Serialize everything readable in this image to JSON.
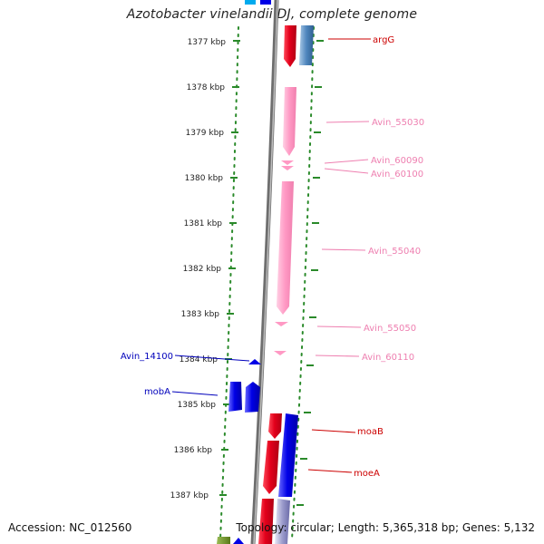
{
  "title": "Azotobacter vinelandii DJ, complete genome",
  "footer": {
    "accession": "Accession: NC_012560",
    "summary": "Topology: circular; Length: 5,365,318 bp; Genes: 5,132"
  },
  "ruler": {
    "unit": "kbp",
    "ticks": [
      1377,
      1378,
      1379,
      1380,
      1381,
      1382,
      1383,
      1384,
      1385,
      1386,
      1387
    ]
  },
  "colors": {
    "backbone": "#8a8a8a",
    "ruler_dots": "#2a8a2a",
    "gene_red": "#e3001b",
    "gene_red_label": "#cc0000",
    "gene_blue": "#0000e6",
    "gene_blue_label": "#0000bb",
    "gene_pink": "#ff99c4",
    "gene_pink_label": "#ee7fb0",
    "gene_steelblue": "#4f86bd",
    "gene_olive": "#6a8e23",
    "gene_lavender": "#9c9ccc"
  },
  "genes": [
    {
      "id": "argG",
      "label": "argG",
      "color": "gene_red",
      "strand": "forward",
      "start_kbp": 1376.7,
      "end_kbp": 1377.55
    },
    {
      "id": "argG-partner",
      "label": "",
      "color": "gene_steelblue",
      "strand": "forward",
      "start_kbp": 1376.7,
      "end_kbp": 1377.55
    },
    {
      "id": "Avin_55030",
      "label": "Avin_55030",
      "color": "gene_pink",
      "strand": "reverse",
      "start_kbp": 1377.95,
      "end_kbp": 1379.5
    },
    {
      "id": "Avin_60090",
      "label": "Avin_60090",
      "color": "gene_pink",
      "strand": "reverse",
      "start_kbp": 1379.6,
      "end_kbp": 1379.7
    },
    {
      "id": "Avin_60100",
      "label": "Avin_60100",
      "color": "gene_pink",
      "strand": "reverse",
      "start_kbp": 1379.75,
      "end_kbp": 1379.85
    },
    {
      "id": "Avin_55040",
      "label": "Avin_55040",
      "color": "gene_pink",
      "strand": "reverse",
      "start_kbp": 1380.05,
      "end_kbp": 1383.0
    },
    {
      "id": "Avin_55050",
      "label": "Avin_55050",
      "color": "gene_pink",
      "strand": "reverse",
      "start_kbp": 1383.2,
      "end_kbp": 1383.3
    },
    {
      "id": "Avin_60110",
      "label": "Avin_60110",
      "color": "gene_pink",
      "strand": "reverse",
      "start_kbp": 1383.8,
      "end_kbp": 1383.9
    },
    {
      "id": "Avin_14100",
      "label": "Avin_14100",
      "color": "gene_blue",
      "strand": "forward",
      "start_kbp": 1384.0,
      "end_kbp": 1384.1
    },
    {
      "id": "mobA-1",
      "label": "mobA",
      "color": "gene_blue",
      "strand": "forward",
      "start_kbp": 1384.5,
      "end_kbp": 1385.2
    },
    {
      "id": "mobA-2",
      "label": "",
      "color": "gene_blue",
      "strand": "forward",
      "start_kbp": 1384.55,
      "end_kbp": 1385.2
    },
    {
      "id": "moaB",
      "label": "moaB",
      "color": "gene_red",
      "strand": "forward",
      "start_kbp": 1385.35,
      "end_kbp": 1385.9
    },
    {
      "id": "moeA-red",
      "label": "",
      "color": "gene_red",
      "strand": "forward",
      "start_kbp": 1385.9,
      "end_kbp": 1386.95
    },
    {
      "id": "moeA",
      "label": "moeA",
      "color": "gene_blue",
      "strand": "forward",
      "start_kbp": 1385.35,
      "end_kbp": 1386.95
    },
    {
      "id": "next-red",
      "label": "",
      "color": "gene_red",
      "strand": "forward",
      "start_kbp": 1387.05,
      "end_kbp": 1388.0
    },
    {
      "id": "next-lavender",
      "label": "",
      "color": "gene_lavender",
      "strand": "forward",
      "start_kbp": 1387.05,
      "end_kbp": 1388.0
    },
    {
      "id": "next-olive",
      "label": "",
      "color": "gene_olive",
      "strand": "forward",
      "start_kbp": 1387.9,
      "end_kbp": 1388.2
    }
  ]
}
